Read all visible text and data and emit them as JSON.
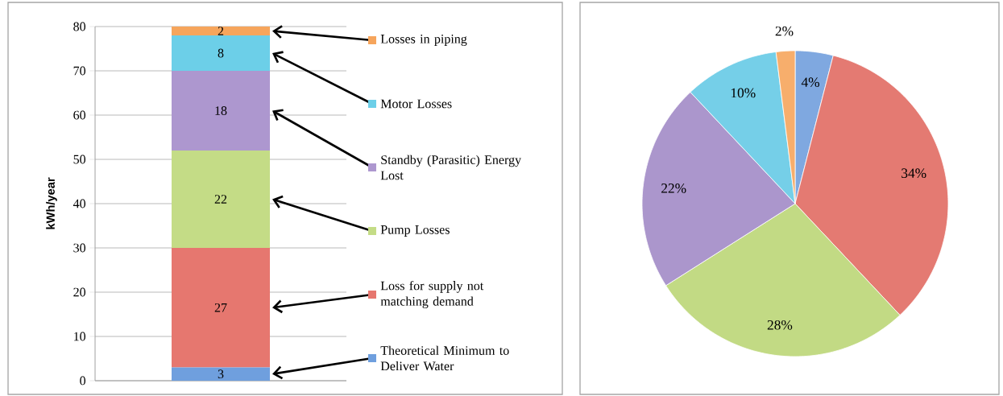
{
  "chart_data": [
    {
      "type": "bar",
      "stacked": true,
      "categories": [
        null
      ],
      "ylabel": "kWh/year",
      "ylim": [
        0,
        80
      ],
      "yticks": [
        0,
        10,
        20,
        30,
        40,
        50,
        60,
        70,
        80
      ],
      "grid": "y",
      "legend": "right",
      "data_labels": true,
      "series": [
        {
          "name": "Theoretical Minimum to Deliver Water",
          "color": "#6f9fde",
          "values": [
            3
          ]
        },
        {
          "name": "Loss for supply not matching demand",
          "color": "#e6776f",
          "values": [
            27
          ]
        },
        {
          "name": "Pump Losses",
          "color": "#c4dc86",
          "values": [
            22
          ]
        },
        {
          "name": "Standby (Parasitic) Energy Lost",
          "color": "#ad97cf",
          "values": [
            18
          ]
        },
        {
          "name": "Motor Losses",
          "color": "#6ccfe8",
          "values": [
            8
          ]
        },
        {
          "name": "Losses in piping",
          "color": "#f6a55c",
          "values": [
            2
          ]
        }
      ]
    },
    {
      "type": "pie",
      "categories": [
        null,
        null,
        null,
        null,
        null,
        null
      ],
      "values": [
        4,
        34,
        28,
        22,
        10,
        2
      ],
      "colors": [
        "#7fa8e0",
        "#e47a72",
        "#c2da84",
        "#ab96cc",
        "#75cfe8",
        "#f7ae6c"
      ],
      "value_labels": [
        "4%",
        "34%",
        "28%",
        "22%",
        "10%",
        "2%"
      ]
    }
  ]
}
